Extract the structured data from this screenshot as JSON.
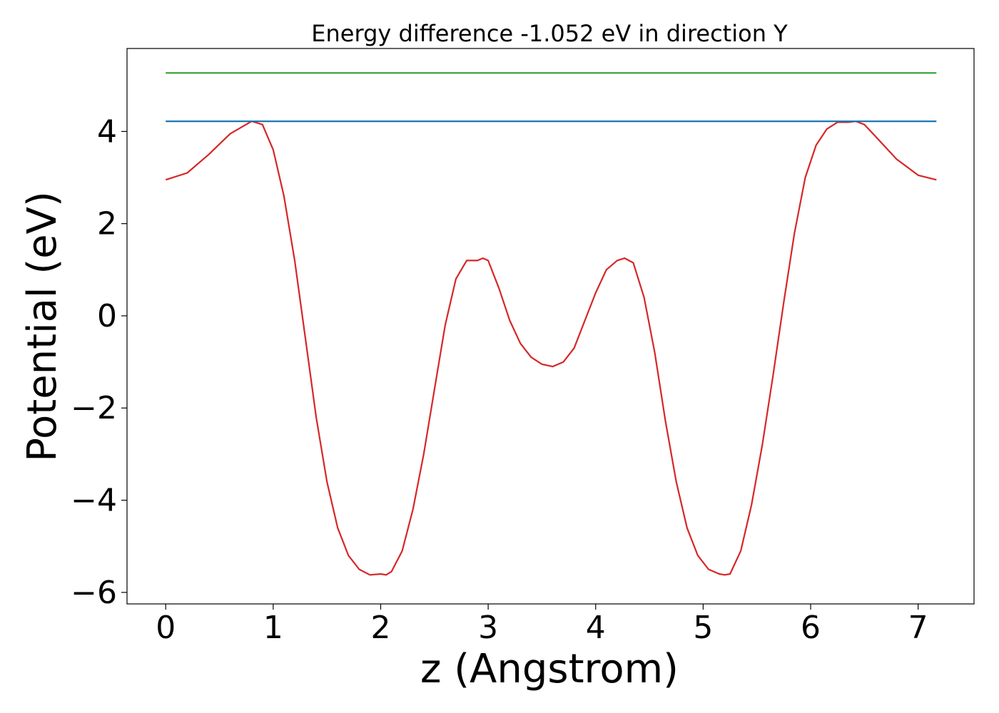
{
  "chart_data": {
    "type": "line",
    "title": "Energy difference -1.052 eV in direction Y",
    "xlabel": "z (Angstrom)",
    "ylabel": "Potential (eV)",
    "xlim": [
      -0.36,
      7.52
    ],
    "ylim": [
      -6.25,
      5.8
    ],
    "xticks": [
      0,
      1,
      2,
      3,
      4,
      5,
      6,
      7
    ],
    "xtick_labels": [
      "0",
      "1",
      "2",
      "3",
      "4",
      "5",
      "6",
      "7"
    ],
    "yticks": [
      -6,
      -4,
      -2,
      0,
      2,
      4
    ],
    "ytick_labels": [
      "−6",
      "−4",
      "−2",
      "0",
      "2",
      "4"
    ],
    "grid": false,
    "legend": "none",
    "series": [
      {
        "color": "#d62728",
        "x": [
          0,
          0.2,
          0.4,
          0.6,
          0.8,
          0.9,
          1.0,
          1.1,
          1.2,
          1.3,
          1.4,
          1.5,
          1.6,
          1.7,
          1.8,
          1.9,
          2.0,
          2.05,
          2.1,
          2.2,
          2.3,
          2.4,
          2.5,
          2.6,
          2.7,
          2.8,
          2.9,
          2.95,
          3.0,
          3.1,
          3.2,
          3.3,
          3.4,
          3.5,
          3.6,
          3.7,
          3.8,
          3.9,
          4.0,
          4.1,
          4.2,
          4.27,
          4.35,
          4.45,
          4.55,
          4.65,
          4.75,
          4.85,
          4.95,
          5.05,
          5.15,
          5.2,
          5.25,
          5.35,
          5.45,
          5.55,
          5.65,
          5.75,
          5.85,
          5.95,
          6.05,
          6.15,
          6.25,
          6.35,
          6.42,
          6.5,
          6.6,
          6.8,
          7.0,
          7.17
        ],
        "y": [
          2.95,
          3.1,
          3.5,
          3.95,
          4.22,
          4.15,
          3.6,
          2.6,
          1.2,
          -0.5,
          -2.2,
          -3.6,
          -4.6,
          -5.2,
          -5.5,
          -5.62,
          -5.6,
          -5.62,
          -5.55,
          -5.1,
          -4.2,
          -3.0,
          -1.6,
          -0.2,
          0.8,
          1.2,
          1.2,
          1.25,
          1.2,
          0.6,
          -0.1,
          -0.6,
          -0.9,
          -1.05,
          -1.1,
          -1.0,
          -0.7,
          -0.1,
          0.5,
          1.0,
          1.2,
          1.25,
          1.15,
          0.4,
          -0.8,
          -2.3,
          -3.6,
          -4.6,
          -5.2,
          -5.5,
          -5.6,
          -5.62,
          -5.6,
          -5.1,
          -4.1,
          -2.8,
          -1.3,
          0.3,
          1.8,
          3.0,
          3.7,
          4.05,
          4.2,
          4.2,
          4.22,
          4.15,
          3.9,
          3.4,
          3.05,
          2.95
        ]
      },
      {
        "color": "#1f77b4",
        "x": [
          0,
          7.17
        ],
        "y": [
          4.22,
          4.22
        ]
      },
      {
        "color": "#2ca02c",
        "x": [
          0,
          7.17
        ],
        "y": [
          5.27,
          5.27
        ]
      }
    ]
  }
}
